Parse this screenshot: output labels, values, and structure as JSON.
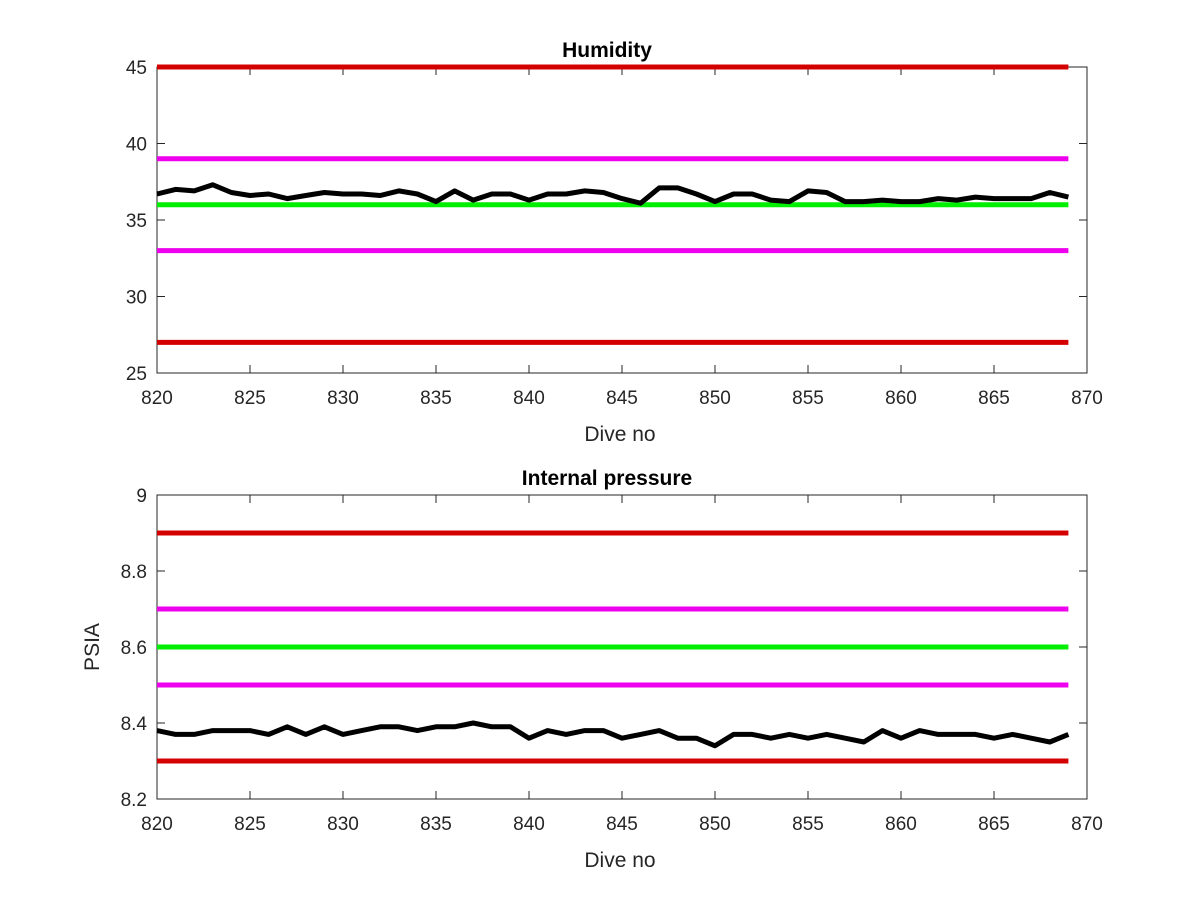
{
  "colors": {
    "outer_limit": "#d40000",
    "inner_limit": "#ee00ee",
    "target": "#00ee00",
    "measurement": "#000000",
    "axes": "#262626"
  },
  "chart_data": [
    {
      "type": "line",
      "title": "Humidity",
      "xlabel": "Dive no",
      "ylabel": "",
      "xlim": [
        820,
        870
      ],
      "ylim": [
        25,
        45
      ],
      "xticks": [
        820,
        825,
        830,
        835,
        840,
        845,
        850,
        855,
        860,
        865,
        870
      ],
      "yticks": [
        25,
        30,
        35,
        40,
        45
      ],
      "grid": false,
      "legend": "none",
      "reference_lines": [
        {
          "y": 45,
          "x_range": [
            820,
            869
          ],
          "color": "#d40000"
        },
        {
          "y": 27,
          "x_range": [
            820,
            869
          ],
          "color": "#d40000"
        },
        {
          "y": 39,
          "x_range": [
            820,
            869
          ],
          "color": "#ee00ee"
        },
        {
          "y": 33,
          "x_range": [
            820,
            869
          ],
          "color": "#ee00ee"
        },
        {
          "y": 36,
          "x_range": [
            820,
            869
          ],
          "color": "#00ee00"
        }
      ],
      "series": [
        {
          "color": "#000000",
          "x": [
            820,
            821,
            822,
            823,
            824,
            825,
            826,
            827,
            828,
            829,
            830,
            831,
            832,
            833,
            834,
            835,
            836,
            837,
            838,
            839,
            840,
            841,
            842,
            843,
            844,
            845,
            846,
            847,
            848,
            849,
            850,
            851,
            852,
            853,
            854,
            855,
            856,
            857,
            858,
            859,
            860,
            861,
            862,
            863,
            864,
            865,
            866,
            867,
            868,
            869
          ],
          "values": [
            36.7,
            37.0,
            36.9,
            37.3,
            36.8,
            36.6,
            36.7,
            36.4,
            36.6,
            36.8,
            36.7,
            36.7,
            36.6,
            36.9,
            36.7,
            36.2,
            36.9,
            36.3,
            36.7,
            36.7,
            36.3,
            36.7,
            36.7,
            36.9,
            36.8,
            36.4,
            36.1,
            37.1,
            37.1,
            36.7,
            36.2,
            36.7,
            36.7,
            36.3,
            36.2,
            36.9,
            36.8,
            36.2,
            36.2,
            36.3,
            36.2,
            36.2,
            36.4,
            36.3,
            36.5,
            36.4,
            36.4,
            36.4,
            36.8,
            36.5
          ]
        }
      ]
    },
    {
      "type": "line",
      "title": "Internal pressure",
      "xlabel": "Dive no",
      "ylabel": "PSIA",
      "xlim": [
        820,
        870
      ],
      "ylim": [
        8.2,
        9.0
      ],
      "xticks": [
        820,
        825,
        830,
        835,
        840,
        845,
        850,
        855,
        860,
        865,
        870
      ],
      "yticks": [
        8.2,
        8.4,
        8.6,
        8.8,
        9.0
      ],
      "ytick_labels": [
        "8.2",
        "8.4",
        "8.6",
        "8.8",
        "9"
      ],
      "grid": false,
      "legend": "none",
      "reference_lines": [
        {
          "y": 8.9,
          "x_range": [
            820,
            869
          ],
          "color": "#d40000"
        },
        {
          "y": 8.3,
          "x_range": [
            820,
            869
          ],
          "color": "#d40000"
        },
        {
          "y": 8.7,
          "x_range": [
            820,
            869
          ],
          "color": "#ee00ee"
        },
        {
          "y": 8.5,
          "x_range": [
            820,
            869
          ],
          "color": "#ee00ee"
        },
        {
          "y": 8.6,
          "x_range": [
            820,
            869
          ],
          "color": "#00ee00"
        }
      ],
      "series": [
        {
          "color": "#000000",
          "x": [
            820,
            821,
            822,
            823,
            824,
            825,
            826,
            827,
            828,
            829,
            830,
            831,
            832,
            833,
            834,
            835,
            836,
            837,
            838,
            839,
            840,
            841,
            842,
            843,
            844,
            845,
            846,
            847,
            848,
            849,
            850,
            851,
            852,
            853,
            854,
            855,
            856,
            857,
            858,
            859,
            860,
            861,
            862,
            863,
            864,
            865,
            866,
            867,
            868,
            869
          ],
          "values": [
            8.38,
            8.37,
            8.37,
            8.38,
            8.38,
            8.38,
            8.37,
            8.39,
            8.37,
            8.39,
            8.37,
            8.38,
            8.39,
            8.39,
            8.38,
            8.39,
            8.39,
            8.4,
            8.39,
            8.39,
            8.36,
            8.38,
            8.37,
            8.38,
            8.38,
            8.36,
            8.37,
            8.38,
            8.36,
            8.36,
            8.34,
            8.37,
            8.37,
            8.36,
            8.37,
            8.36,
            8.37,
            8.36,
            8.35,
            8.38,
            8.36,
            8.38,
            8.37,
            8.37,
            8.37,
            8.36,
            8.37,
            8.36,
            8.35,
            8.37
          ]
        }
      ]
    }
  ]
}
